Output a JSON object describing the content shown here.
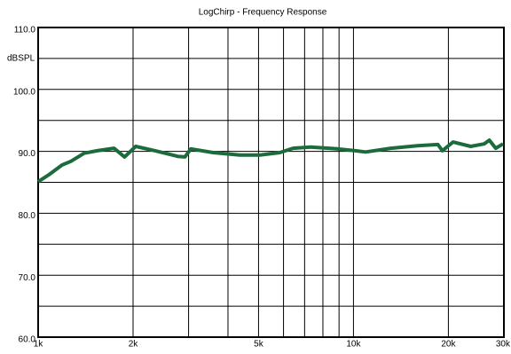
{
  "chart_data": {
    "type": "line",
    "title": "LogChirp - Frequency Response",
    "ylabel": "dBSPL",
    "xscale": "log",
    "xlim": [
      1000,
      30000
    ],
    "ylim": [
      60,
      110
    ],
    "xticks": [
      {
        "value": 1000,
        "label": "1k"
      },
      {
        "value": 2000,
        "label": "2k"
      },
      {
        "value": 5000,
        "label": "5k"
      },
      {
        "value": 10000,
        "label": "10k"
      },
      {
        "value": 20000,
        "label": "20k"
      },
      {
        "value": 30000,
        "label": "30k"
      }
    ],
    "minor_xticks": [
      3000,
      4000,
      6000,
      7000,
      8000,
      9000
    ],
    "yticks": [
      {
        "value": 60,
        "label": "60.0"
      },
      {
        "value": 70,
        "label": "70.0"
      },
      {
        "value": 80,
        "label": "80.0"
      },
      {
        "value": 90,
        "label": "90.0"
      },
      {
        "value": 100,
        "label": "100.0"
      },
      {
        "value": 110,
        "label": "110.0"
      }
    ],
    "minor_yticks": [
      65,
      75,
      85,
      95,
      105
    ],
    "grid": true,
    "x": [
      1000,
      1080,
      1190,
      1270,
      1400,
      1540,
      1740,
      1880,
      2040,
      2350,
      2770,
      2920,
      3050,
      3590,
      4360,
      5040,
      5840,
      6430,
      7310,
      8890,
      10130,
      10930,
      13140,
      15950,
      18530,
      19140,
      20700,
      23540,
      25960,
      26970,
      28260,
      29800
    ],
    "series": [
      {
        "color": "#1c6b3c",
        "values": [
          85.1,
          86.2,
          87.8,
          88.4,
          89.7,
          90.1,
          90.5,
          89.1,
          90.8,
          90.1,
          89.2,
          89.1,
          90.4,
          89.8,
          89.4,
          89.4,
          89.8,
          90.5,
          90.7,
          90.4,
          90.1,
          89.9,
          90.5,
          90.9,
          91.1,
          90.1,
          91.5,
          90.8,
          91.2,
          91.8,
          90.5,
          91.2
        ]
      }
    ]
  }
}
